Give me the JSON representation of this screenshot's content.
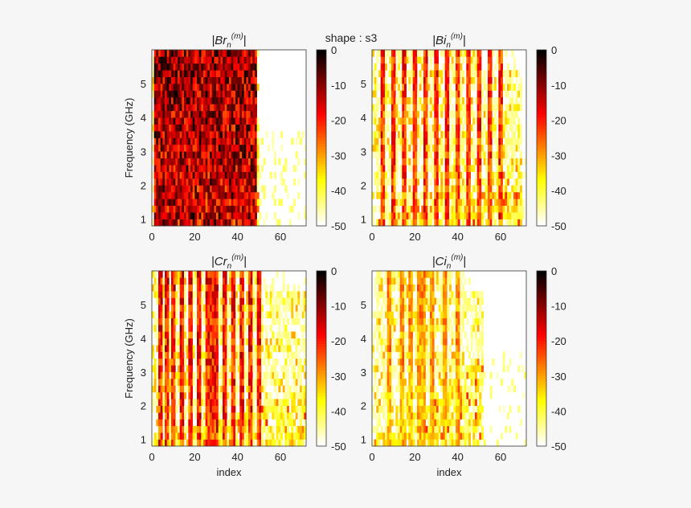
{
  "suptitle": "shape : s3",
  "chart_data": [
    {
      "type": "heatmap",
      "title_base": "|Br",
      "title_sub": "n",
      "title_sup": "(m)",
      "title_end": "|",
      "xlabel": "",
      "ylabel": "Frequency (GHz)",
      "x_range": [
        0,
        72
      ],
      "y_range": [
        0.8,
        6.0
      ],
      "xticks": [
        "0",
        "20",
        "40",
        "60"
      ],
      "xtick_values": [
        0,
        20,
        40,
        60
      ],
      "yticks": [
        "1",
        "2",
        "3",
        "4",
        "5"
      ],
      "ytick_values": [
        1,
        2,
        3,
        4,
        5
      ],
      "colorbar": {
        "label_values": [
          0,
          -10,
          -20,
          -30,
          -40,
          -50
        ],
        "labels": [
          "0",
          "-10",
          "-20",
          "-30",
          "-40",
          "-50"
        ],
        "range": [
          -50,
          0
        ],
        "colormap": "hot_r"
      },
      "pattern": {
        "strong_columns": [
          2,
          4,
          6,
          8,
          10,
          12,
          14,
          16,
          18,
          20,
          22,
          24,
          26,
          28,
          30,
          32,
          34,
          36,
          38,
          40,
          42,
          44,
          46,
          48
        ],
        "cutoff_index": 50,
        "seed": 11,
        "strength": 1.0,
        "diagonal": 0.55
      }
    },
    {
      "type": "heatmap",
      "title_base": "|Bi",
      "title_sub": "n",
      "title_sup": "(m)",
      "title_end": "|",
      "xlabel": "",
      "ylabel": "",
      "x_range": [
        0,
        72
      ],
      "y_range": [
        0.8,
        6.0
      ],
      "xticks": [
        "0",
        "20",
        "40",
        "60"
      ],
      "xtick_values": [
        0,
        20,
        40,
        60
      ],
      "yticks": [
        "1",
        "2",
        "3",
        "4",
        "5"
      ],
      "ytick_values": [
        1,
        2,
        3,
        4,
        5
      ],
      "colorbar": {
        "label_values": [
          0,
          -10,
          -20,
          -30,
          -40,
          -50
        ],
        "labels": [
          "0",
          "-10",
          "-20",
          "-30",
          "-40",
          "-50"
        ],
        "range": [
          -50,
          0
        ],
        "colormap": "hot_r"
      },
      "pattern": {
        "strong_columns": [
          5,
          10,
          15,
          20,
          25,
          30,
          35,
          40,
          45,
          50,
          55,
          60
        ],
        "cutoff_index": 70,
        "seed": 23,
        "strength": 0.75,
        "diagonal": 0.35
      }
    },
    {
      "type": "heatmap",
      "title_base": "|Cr",
      "title_sub": "n",
      "title_sup": "(m)",
      "title_end": "|",
      "xlabel": "index",
      "ylabel": "Frequency (GHz)",
      "x_range": [
        0,
        72
      ],
      "y_range": [
        0.8,
        6.0
      ],
      "xticks": [
        "0",
        "20",
        "40",
        "60"
      ],
      "xtick_values": [
        0,
        20,
        40,
        60
      ],
      "yticks": [
        "1",
        "2",
        "3",
        "4",
        "5"
      ],
      "ytick_values": [
        1,
        2,
        3,
        4,
        5
      ],
      "colorbar": {
        "label_values": [
          0,
          -10,
          -20,
          -30,
          -40,
          -50
        ],
        "labels": [
          "0",
          "-10",
          "-20",
          "-30",
          "-40",
          "-50"
        ],
        "range": [
          -50,
          0
        ],
        "colormap": "hot_r"
      },
      "pattern": {
        "strong_columns": [
          4,
          7,
          10,
          14,
          18,
          22,
          26,
          28,
          30,
          34,
          38,
          42,
          46,
          50
        ],
        "cutoff_index": 72,
        "seed": 37,
        "strength": 0.8,
        "diagonal": 0.3
      }
    },
    {
      "type": "heatmap",
      "title_base": "|Ci",
      "title_sub": "n",
      "title_sup": "(m)",
      "title_end": "|",
      "xlabel": "index",
      "ylabel": "",
      "x_range": [
        0,
        72
      ],
      "y_range": [
        0.8,
        6.0
      ],
      "xticks": [
        "0",
        "20",
        "40",
        "60"
      ],
      "xtick_values": [
        0,
        20,
        40,
        60
      ],
      "yticks": [
        "1",
        "2",
        "3",
        "4",
        "5"
      ],
      "ytick_values": [
        1,
        2,
        3,
        4,
        5
      ],
      "colorbar": {
        "label_values": [
          0,
          -10,
          -20,
          -30,
          -40,
          -50
        ],
        "labels": [
          "0",
          "-10",
          "-20",
          "-30",
          "-40",
          "-50"
        ],
        "range": [
          -50,
          0
        ],
        "colormap": "hot_r"
      },
      "pattern": {
        "strong_columns": [
          8,
          14,
          18,
          22,
          24,
          28,
          34,
          40
        ],
        "cutoff_index": 52,
        "seed": 53,
        "strength": 0.55,
        "diagonal": 0.5
      }
    }
  ]
}
